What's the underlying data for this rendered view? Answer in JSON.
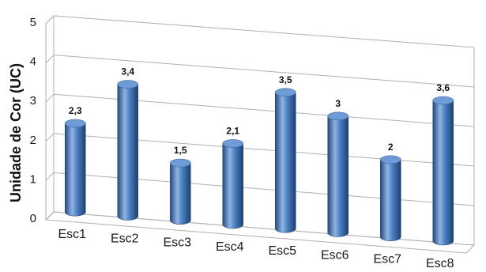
{
  "chart_data": {
    "type": "bar",
    "title": "",
    "xlabel": "",
    "ylabel": "Unidade de Cor (UC)",
    "categories": [
      "Esc1",
      "Esc2",
      "Esc3",
      "Esc4",
      "Esc5",
      "Esc6",
      "Esc7",
      "Esc8"
    ],
    "values": [
      2.3,
      3.4,
      1.5,
      2.1,
      3.5,
      3.0,
      2.0,
      3.6
    ],
    "data_labels": [
      "2,3",
      "3,4",
      "1,5",
      "2,1",
      "3,5",
      "3",
      "2",
      "3,6"
    ],
    "yticks": [
      "0",
      "1",
      "2",
      "3",
      "4",
      "5"
    ],
    "ylim": [
      0,
      5
    ],
    "grid": true,
    "bar_style": "3d-cylinder",
    "colors": {
      "bar": "#4a7ebf",
      "bar_dark": "#244a7c",
      "bar_light": "#8fb4e4",
      "grid": "#b0b0b0"
    }
  }
}
